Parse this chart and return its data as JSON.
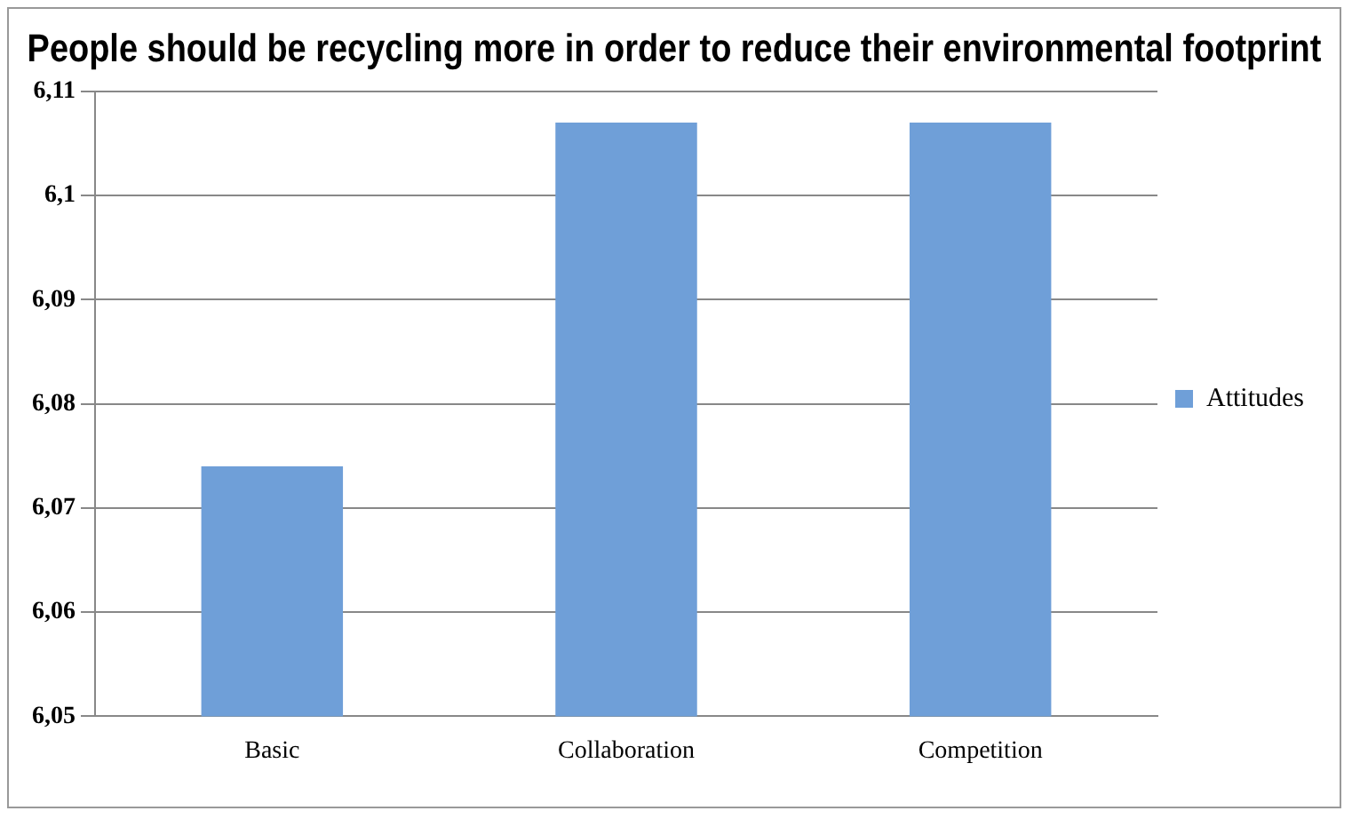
{
  "chart_data": {
    "type": "bar",
    "title": "People should be recycling more in order to reduce their environmental footprint",
    "categories": [
      "Basic",
      "Collaboration",
      "Competition"
    ],
    "series": [
      {
        "name": "Attitudes",
        "color": "#6f9fd8",
        "values": [
          6.074,
          6.107,
          6.107
        ]
      }
    ],
    "ylim": [
      6.05,
      6.11
    ],
    "yticks": [
      {
        "value": 6.05,
        "label": "6,05"
      },
      {
        "value": 6.06,
        "label": "6,06"
      },
      {
        "value": 6.07,
        "label": "6,07"
      },
      {
        "value": 6.08,
        "label": "6,08"
      },
      {
        "value": 6.09,
        "label": "6,09"
      },
      {
        "value": 6.1,
        "label": "6,1"
      },
      {
        "value": 6.11,
        "label": "6,11"
      }
    ],
    "grid": "y",
    "legend": "right"
  }
}
